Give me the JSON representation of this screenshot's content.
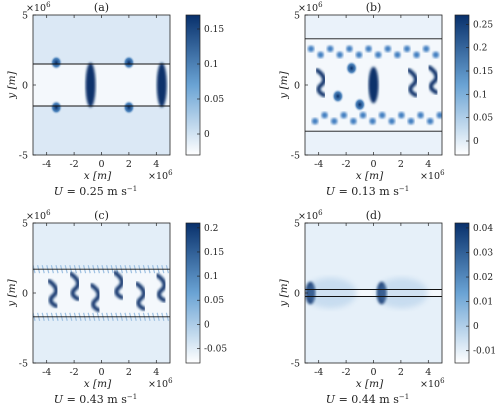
{
  "chart_data": [
    {
      "type": "heatmap",
      "title": "(a)",
      "xlabel": "x [m]",
      "ylabel": "y [m]",
      "x_exponent": "×10^6",
      "y_exponent": "×10^6",
      "xlim": [
        -5,
        5
      ],
      "ylim": [
        -5,
        5
      ],
      "xticks": [
        "-4",
        "-2",
        "0",
        "2",
        "4"
      ],
      "yticks": [
        "-5",
        "0",
        "5"
      ],
      "caption": "U = 0.25 m s^-1",
      "colorbar": {
        "ticks": [
          "0.15",
          "0.1",
          "0.05",
          "0"
        ],
        "tick_values": [
          0.15,
          0.1,
          0.05,
          0
        ],
        "range": [
          -0.03,
          0.17
        ]
      },
      "boundary_lines_y": [
        1.5,
        -1.5
      ],
      "features": [
        {
          "shape": "band",
          "x": -0.8,
          "y": 0,
          "height": 3.2,
          "value": 0.17
        },
        {
          "shape": "band",
          "x": 4.4,
          "y": 0,
          "height": 3.2,
          "value": 0.17
        },
        {
          "shape": "spot",
          "x": -3.3,
          "y": 1.6,
          "value": 0.12
        },
        {
          "shape": "spot",
          "x": -3.3,
          "y": -1.6,
          "value": 0.12
        },
        {
          "shape": "spot",
          "x": 2.0,
          "y": 1.6,
          "value": 0.12
        },
        {
          "shape": "spot",
          "x": 2.0,
          "y": -1.6,
          "value": 0.12
        }
      ]
    },
    {
      "type": "heatmap",
      "title": "(b)",
      "xlabel": "x [m]",
      "ylabel": "y [m]",
      "x_exponent": "×10^6",
      "y_exponent": "×10^6",
      "xlim": [
        -5,
        5
      ],
      "ylim": [
        -5,
        5
      ],
      "xticks": [
        "-4",
        "-2",
        "0",
        "2",
        "4"
      ],
      "yticks": [
        "-5",
        "0",
        "5"
      ],
      "caption": "U = 0.13 m s^-1",
      "colorbar": {
        "ticks": [
          "0.25",
          "0.2",
          "0.15",
          "0.1",
          "0.05",
          "0"
        ],
        "tick_values": [
          0.25,
          0.2,
          0.15,
          0.1,
          0.05,
          0
        ],
        "range": [
          -0.03,
          0.27
        ]
      },
      "boundary_lines_y": [
        3.3,
        -3.3
      ],
      "features": [
        {
          "shape": "arc",
          "x": -3.9,
          "y": 0.2,
          "value": 0.27
        },
        {
          "shape": "arc",
          "x": 2.8,
          "y": 0.2,
          "value": 0.27
        },
        {
          "shape": "band",
          "x": 0.0,
          "y": 0,
          "height": 2.6,
          "value": 0.27
        },
        {
          "shape": "arc",
          "x": 4.3,
          "y": 0.4,
          "value": 0.27
        },
        {
          "shape": "spot",
          "x": -1.6,
          "y": 1.2,
          "value": 0.22
        },
        {
          "shape": "spot",
          "x": -2.6,
          "y": -0.8,
          "value": 0.2
        },
        {
          "shape": "spot",
          "x": -1.0,
          "y": -1.4,
          "value": 0.2
        }
      ]
    },
    {
      "type": "heatmap",
      "title": "(c)",
      "xlabel": "x [m]",
      "ylabel": "y [m]",
      "x_exponent": "×10^6",
      "y_exponent": "×10^6",
      "xlim": [
        -5,
        5
      ],
      "ylim": [
        -5,
        5
      ],
      "xticks": [
        "-4",
        "-2",
        "0",
        "2",
        "4"
      ],
      "yticks": [
        "-5",
        "0",
        "5"
      ],
      "caption": "U = 0.43 m s^-1",
      "colorbar": {
        "ticks": [
          "0.2",
          "0.15",
          "0.1",
          "0.05",
          "0",
          "-0.05"
        ],
        "tick_values": [
          0.2,
          0.15,
          0.1,
          0.05,
          0,
          -0.05
        ],
        "range": [
          -0.08,
          0.21
        ]
      },
      "boundary_lines_y": [
        1.7,
        -1.7
      ],
      "features": [
        {
          "shape": "arc",
          "x": -3.6,
          "y": 0.0,
          "value": 0.2
        },
        {
          "shape": "arc",
          "x": -2.0,
          "y": 0.5,
          "value": 0.2
        },
        {
          "shape": "arc",
          "x": -0.5,
          "y": -0.3,
          "value": 0.2
        },
        {
          "shape": "arc",
          "x": 1.2,
          "y": 0.6,
          "value": 0.2
        },
        {
          "shape": "arc",
          "x": 2.8,
          "y": -0.2,
          "value": 0.2
        },
        {
          "shape": "arc",
          "x": 4.3,
          "y": 0.4,
          "value": 0.2
        }
      ]
    },
    {
      "type": "heatmap",
      "title": "(d)",
      "xlabel": "x [m]",
      "ylabel": "y [m]",
      "x_exponent": "×10^6",
      "y_exponent": "×10^6",
      "xlim": [
        -5,
        5
      ],
      "ylim": [
        -5,
        5
      ],
      "xticks": [
        "-4",
        "-2",
        "0",
        "2",
        "4"
      ],
      "yticks": [
        "-5",
        "0",
        "5"
      ],
      "caption": "U = 0.44 m s^-1",
      "colorbar": {
        "ticks": [
          "0.04",
          "0.03",
          "0.02",
          "0.01",
          "0",
          "-0.01"
        ],
        "tick_values": [
          0.04,
          0.03,
          0.02,
          0.01,
          0,
          -0.01
        ],
        "range": [
          -0.015,
          0.042
        ]
      },
      "boundary_lines_y": [
        0.25,
        -0.25
      ],
      "features": [
        {
          "shape": "band",
          "x": -4.6,
          "y": 0,
          "height": 1.6,
          "value": 0.042
        },
        {
          "shape": "band",
          "x": 0.6,
          "y": 0,
          "height": 1.6,
          "value": 0.042
        }
      ]
    }
  ]
}
